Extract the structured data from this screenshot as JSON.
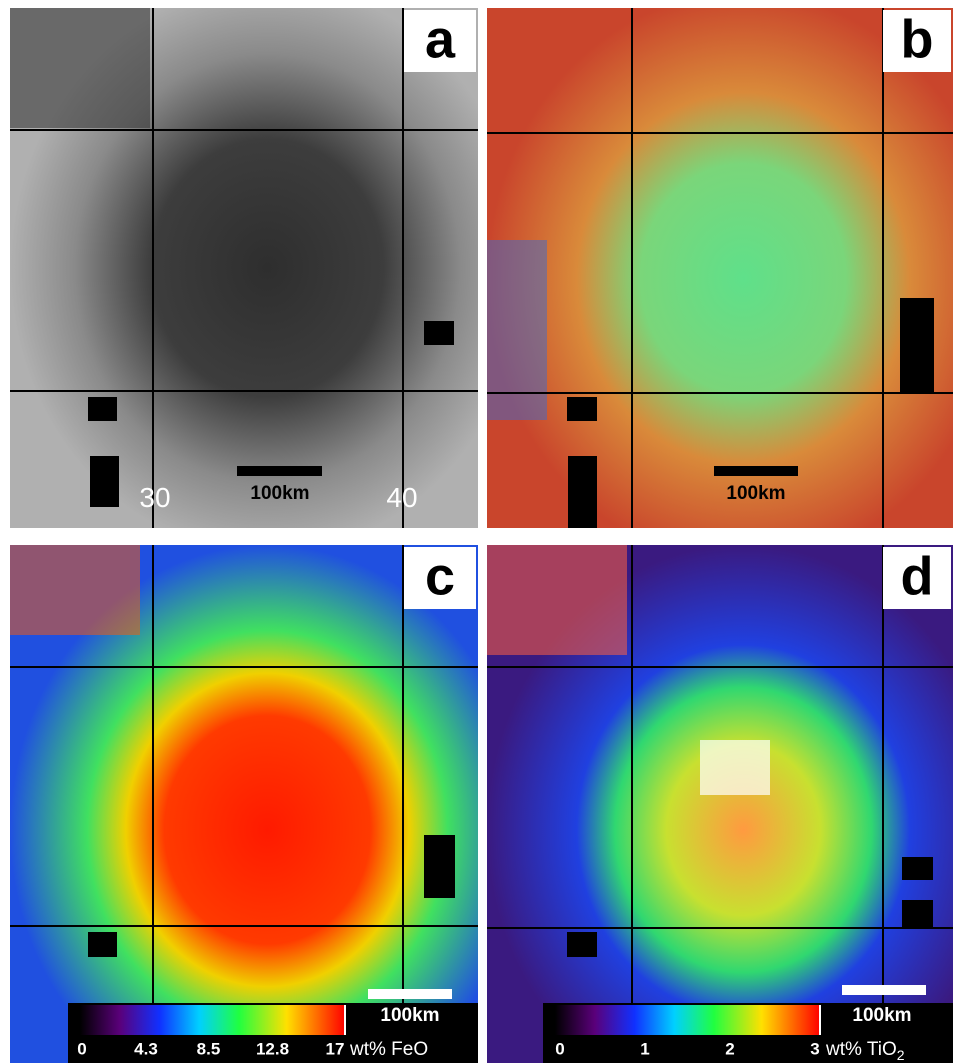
{
  "panels": [
    {
      "label": "a",
      "scale_bar": "100km",
      "longitudes": [
        "30",
        "40"
      ]
    },
    {
      "label": "b",
      "scale_bar": "100km"
    },
    {
      "label": "c",
      "scale_bar": "100km",
      "colorbar": {
        "ticks": [
          0,
          4.3,
          8.5,
          12.8,
          17
        ],
        "unit": "wt% FeO"
      }
    },
    {
      "label": "d",
      "scale_bar": "100km",
      "colorbar": {
        "ticks": [
          0,
          1,
          2,
          3
        ],
        "unit": "wt% TiO",
        "unit_subscript": "2"
      }
    }
  ]
}
